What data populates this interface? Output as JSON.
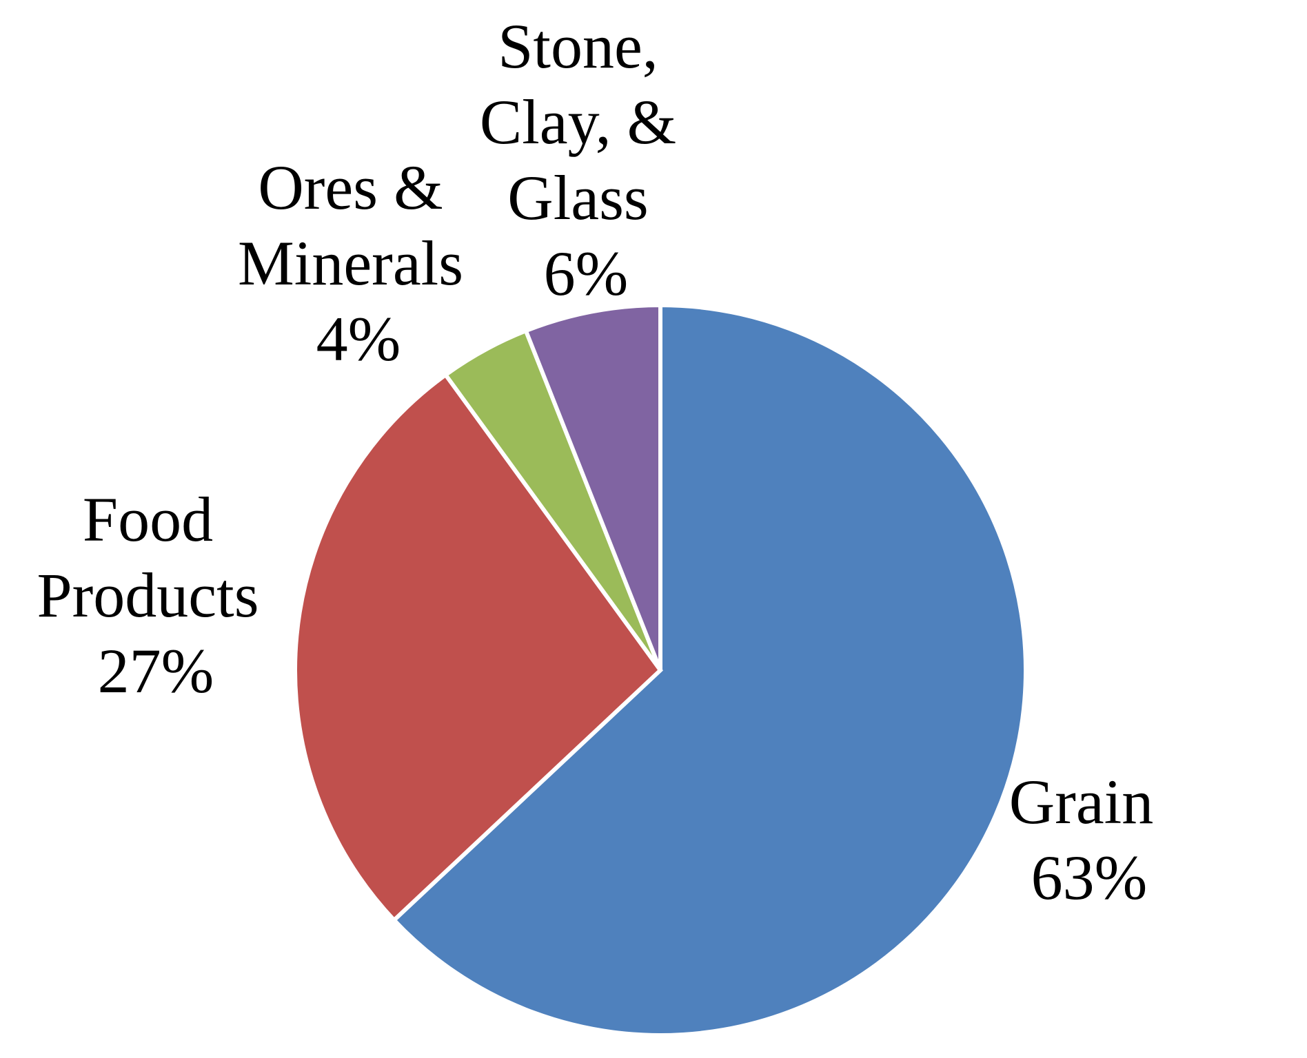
{
  "chart_data": {
    "type": "pie",
    "title": "",
    "start_angle_deg": 0,
    "direction": "clockwise",
    "slices": [
      {
        "key": "grain",
        "category": "Grain",
        "label_lines": [
          "Grain"
        ],
        "percent_label": "63%",
        "value": 63,
        "color": "#4F81BD"
      },
      {
        "key": "food",
        "category": "Food Products",
        "label_lines": [
          "Food",
          "Products"
        ],
        "percent_label": "27%",
        "value": 27,
        "color": "#C0504D"
      },
      {
        "key": "ores",
        "category": "Ores & Minerals",
        "label_lines": [
          "Ores &",
          "Minerals"
        ],
        "percent_label": "4%",
        "value": 4,
        "color": "#9BBB59"
      },
      {
        "key": "stone",
        "category": "Stone, Clay, & Glass",
        "label_lines": [
          "Stone,",
          "Clay, &",
          "Glass"
        ],
        "percent_label": "6%",
        "value": 6,
        "color": "#8064A2"
      }
    ]
  }
}
